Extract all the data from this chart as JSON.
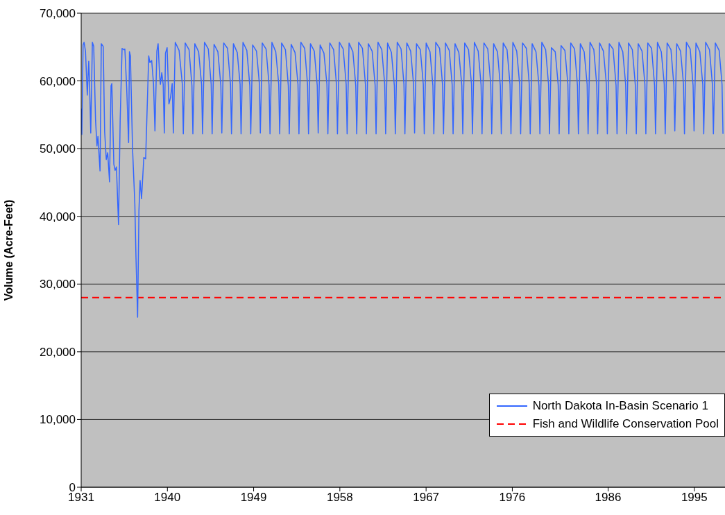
{
  "chart_data": {
    "type": "line",
    "ylabel": "Volume (Acre-Feet)",
    "xlim": [
      1931,
      1998.2
    ],
    "xticks": [
      1931,
      1940,
      1949,
      1958,
      1967,
      1976,
      1986,
      1995
    ],
    "ylim": [
      0,
      70000
    ],
    "yticks": [
      {
        "value": 0,
        "label": "0"
      },
      {
        "value": 10000,
        "label": "10,000"
      },
      {
        "value": 20000,
        "label": "20,000"
      },
      {
        "value": 30000,
        "label": "30,000"
      },
      {
        "value": 40000,
        "label": "40,000"
      },
      {
        "value": 50000,
        "label": "50,000"
      },
      {
        "value": 60000,
        "label": "60,000"
      },
      {
        "value": 70000,
        "label": "70,000"
      }
    ],
    "grid": "y",
    "legend": "bottom right",
    "marker": "none",
    "line_style": "solid",
    "ref_lines": [
      {
        "axis": "y",
        "value": 28000,
        "label": "Fish and Wildlife Conservation Pool",
        "color": "#ff0000",
        "line_style": "dashed"
      }
    ],
    "series": [
      {
        "name": "North Dakota In-Basin Scenario 1",
        "color": "#3366ff",
        "x": [
          1931.0,
          1931.07,
          1931.2,
          1931.3,
          1931.45,
          1931.64,
          1931.79,
          1931.88,
          1932.0,
          1932.17,
          1932.31,
          1932.5,
          1932.65,
          1932.75,
          1932.97,
          1933.1,
          1933.3,
          1933.45,
          1933.62,
          1933.77,
          1933.96,
          1934.12,
          1934.2,
          1934.41,
          1934.54,
          1934.68,
          1934.9,
          1935.07,
          1935.27,
          1935.46,
          1935.56,
          1935.75,
          1935.95,
          1936.04,
          1936.14,
          1936.36,
          1936.6,
          1936.72,
          1936.89,
          1937.03,
          1937.15,
          1937.3,
          1937.54,
          1937.73,
          1938.05,
          1938.17,
          1938.36,
          1938.55,
          1938.7,
          1938.9,
          1939.03,
          1939.18,
          1939.27,
          1939.41,
          1939.56,
          1939.68,
          1939.8,
          1939.97,
          1940.16,
          1940.33,
          1940.5,
          1940.62,
          1940.82,
          1941.22,
          1941.56,
          1941.66,
          1941.86,
          1942.26,
          1942.56,
          1942.66,
          1942.86,
          1943.26,
          1943.57,
          1943.67,
          1943.87,
          1944.27,
          1944.57,
          1944.67,
          1944.87,
          1945.27,
          1945.58,
          1945.68,
          1945.88,
          1946.28,
          1946.59,
          1946.69,
          1946.89,
          1947.29,
          1947.59,
          1947.69,
          1947.89,
          1948.29,
          1948.6,
          1948.7,
          1948.9,
          1949.3,
          1949.6,
          1949.7,
          1949.9,
          1950.3,
          1950.61,
          1950.71,
          1950.91,
          1951.31,
          1951.62,
          1951.72,
          1951.92,
          1952.32,
          1952.62,
          1952.72,
          1952.92,
          1953.32,
          1953.63,
          1953.73,
          1953.93,
          1954.33,
          1954.63,
          1954.73,
          1954.93,
          1955.33,
          1955.64,
          1955.74,
          1955.94,
          1956.34,
          1956.65,
          1956.75,
          1956.95,
          1957.35,
          1957.65,
          1957.75,
          1957.95,
          1958.35,
          1958.66,
          1958.76,
          1958.96,
          1959.36,
          1959.66,
          1959.76,
          1959.96,
          1960.36,
          1960.67,
          1960.77,
          1960.97,
          1961.37,
          1961.68,
          1961.78,
          1961.98,
          1962.38,
          1962.68,
          1962.78,
          1962.98,
          1963.38,
          1963.69,
          1963.79,
          1963.99,
          1964.39,
          1964.69,
          1964.79,
          1964.99,
          1965.39,
          1965.7,
          1965.8,
          1966.0,
          1966.4,
          1966.71,
          1966.81,
          1967.01,
          1967.41,
          1967.71,
          1967.81,
          1968.01,
          1968.41,
          1968.72,
          1968.82,
          1969.02,
          1969.42,
          1969.72,
          1969.82,
          1970.02,
          1970.42,
          1970.73,
          1970.83,
          1971.03,
          1971.43,
          1971.74,
          1971.84,
          1972.04,
          1972.44,
          1972.74,
          1972.84,
          1973.04,
          1973.44,
          1973.75,
          1973.85,
          1974.05,
          1974.45,
          1974.75,
          1974.85,
          1975.05,
          1975.45,
          1975.76,
          1975.86,
          1976.06,
          1976.46,
          1976.77,
          1976.87,
          1977.07,
          1977.47,
          1977.77,
          1977.87,
          1978.07,
          1978.47,
          1978.78,
          1978.88,
          1979.08,
          1979.48,
          1979.78,
          1979.88,
          1980.08,
          1980.48,
          1980.79,
          1980.89,
          1981.09,
          1981.49,
          1981.8,
          1981.9,
          1982.1,
          1982.5,
          1982.8,
          1982.9,
          1983.1,
          1983.5,
          1983.81,
          1983.91,
          1984.11,
          1984.51,
          1984.81,
          1984.91,
          1985.11,
          1985.51,
          1985.82,
          1985.92,
          1986.12,
          1986.52,
          1986.83,
          1986.93,
          1987.13,
          1987.53,
          1987.83,
          1987.93,
          1988.13,
          1988.53,
          1988.84,
          1988.94,
          1989.14,
          1989.54,
          1989.84,
          1989.94,
          1990.14,
          1990.54,
          1990.85,
          1990.95,
          1991.15,
          1991.55,
          1991.86,
          1991.96,
          1992.16,
          1992.56,
          1992.86,
          1992.96,
          1993.16,
          1993.56,
          1993.87,
          1993.97,
          1994.17,
          1994.57,
          1994.87,
          1994.97,
          1995.17,
          1995.57,
          1995.88,
          1995.98,
          1996.18,
          1996.58,
          1996.89,
          1996.99,
          1997.19,
          1997.59,
          1997.89,
          1997.99
        ],
        "values": [
          55900,
          52100,
          65300,
          65700,
          64400,
          57900,
          62900,
          59500,
          52300,
          65700,
          65100,
          54200,
          50400,
          51800,
          46700,
          65500,
          65100,
          52500,
          48400,
          49400,
          45100,
          59300,
          59600,
          47700,
          46800,
          47300,
          38800,
          54200,
          64800,
          64600,
          64700,
          59000,
          50900,
          64300,
          63700,
          50100,
          41900,
          34000,
          25100,
          40900,
          45300,
          42600,
          48700,
          48500,
          63700,
          62700,
          63000,
          59600,
          52600,
          64400,
          65500,
          61000,
          59500,
          61200,
          59500,
          52300,
          64100,
          64900,
          56600,
          57600,
          59600,
          52300,
          65700,
          64500,
          59500,
          52200,
          65600,
          64600,
          59300,
          52200,
          65500,
          64300,
          59400,
          52200,
          65700,
          64700,
          59500,
          52200,
          65400,
          64300,
          59300,
          52300,
          65600,
          64800,
          59400,
          52200,
          65500,
          64200,
          59500,
          52200,
          65700,
          64500,
          59300,
          52200,
          65300,
          64400,
          59600,
          52300,
          65600,
          64700,
          59400,
          52200,
          65700,
          64300,
          59500,
          52200,
          65600,
          64600,
          59300,
          52200,
          65400,
          64200,
          59500,
          52200,
          65700,
          64800,
          59400,
          52200,
          65500,
          64400,
          59300,
          52300,
          65300,
          64100,
          59500,
          52200,
          65600,
          64600,
          59400,
          52200,
          65700,
          64700,
          59500,
          52200,
          65600,
          64300,
          59300,
          52200,
          65700,
          64800,
          59500,
          52200,
          65500,
          64400,
          59400,
          52200,
          65700,
          64600,
          59500,
          52200,
          65600,
          64200,
          59300,
          52200,
          65700,
          64700,
          59500,
          52200,
          65600,
          64400,
          59400,
          52300,
          65500,
          64600,
          59500,
          52200,
          65600,
          64300,
          59300,
          52200,
          65700,
          64800,
          59400,
          52200,
          65600,
          64500,
          59500,
          52200,
          65500,
          64200,
          59300,
          52200,
          65600,
          64600,
          59500,
          52200,
          65700,
          64400,
          59400,
          52200,
          65600,
          64700,
          59500,
          52200,
          65500,
          64300,
          59300,
          52200,
          65600,
          64600,
          59500,
          52200,
          65700,
          64400,
          59400,
          52200,
          65600,
          64800,
          59500,
          52200,
          65500,
          64300,
          59300,
          52200,
          65700,
          64600,
          59500,
          52200,
          64900,
          64300,
          59400,
          52200,
          65200,
          64500,
          59500,
          52200,
          65600,
          64700,
          59300,
          52200,
          65500,
          64300,
          59500,
          52200,
          65700,
          64600,
          59400,
          52200,
          65600,
          64400,
          59500,
          52200,
          65500,
          64700,
          59300,
          52200,
          65700,
          64300,
          59500,
          52200,
          65600,
          64600,
          59400,
          52200,
          65500,
          64400,
          59500,
          52200,
          65600,
          64800,
          59300,
          52200,
          65700,
          64300,
          59500,
          52200,
          65600,
          64600,
          59400,
          52600,
          65500,
          64400,
          59500,
          52200,
          65700,
          64700,
          59300,
          52600,
          65600,
          64300,
          59500,
          52200,
          65700,
          64600,
          59400,
          52200,
          65600,
          64500,
          59500,
          52200
        ]
      }
    ]
  }
}
